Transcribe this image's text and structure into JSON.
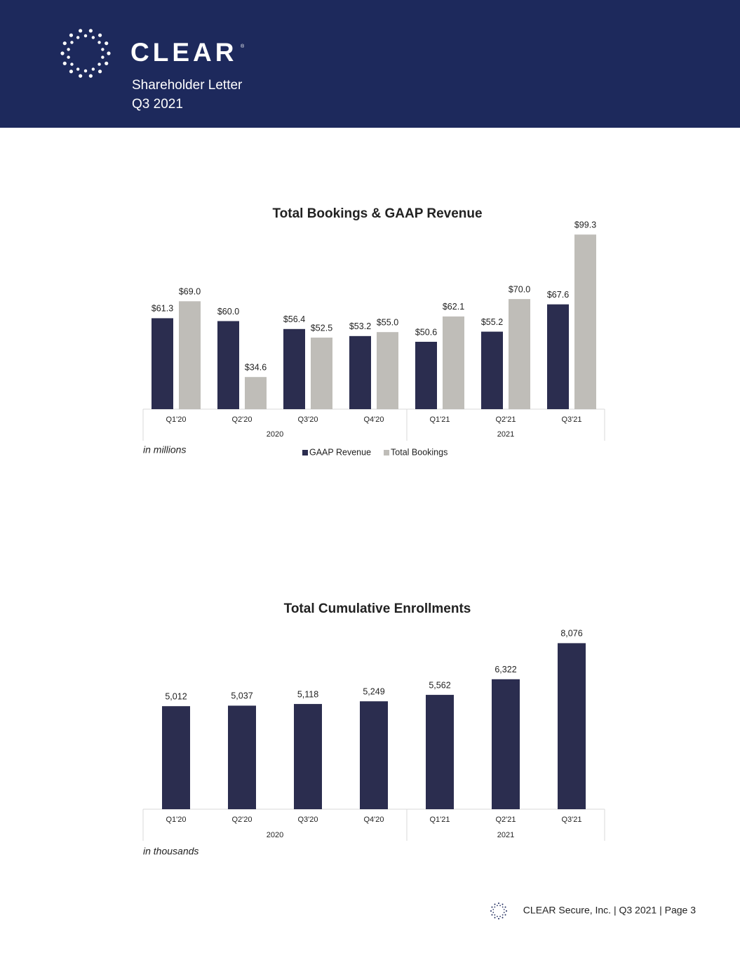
{
  "header": {
    "brand": "CLEAR",
    "brand_mark": "®",
    "subtitle": "Shareholder Letter",
    "period": "Q3 2021"
  },
  "chart_data": [
    {
      "type": "bar",
      "title": "Total Bookings & GAAP Revenue",
      "category_groups": [
        {
          "name": "2020",
          "categories": [
            "Q1'20",
            "Q2'20",
            "Q3'20",
            "Q4'20"
          ]
        },
        {
          "name": "2021",
          "categories": [
            "Q1'21",
            "Q2'21",
            "Q3'21"
          ]
        }
      ],
      "series": [
        {
          "name": "GAAP Revenue",
          "color": "#2b2d4f",
          "values": [
            61.3,
            60.0,
            56.4,
            53.2,
            50.6,
            55.2,
            67.6
          ],
          "value_labels": [
            "$61.3",
            "$60.0",
            "$56.4",
            "$53.2",
            "$50.6",
            "$55.2",
            "$67.6"
          ]
        },
        {
          "name": "Total Bookings",
          "color": "#bfbdb8",
          "values": [
            69.0,
            34.6,
            52.5,
            55.0,
            62.1,
            70.0,
            99.3
          ],
          "value_labels": [
            "$69.0",
            "$34.6",
            "$52.5",
            "$55.0",
            "$62.1",
            "$70.0",
            "$99.3"
          ]
        }
      ],
      "ylim": [
        20,
        100
      ],
      "note": "in millions",
      "legend": "bottom"
    },
    {
      "type": "bar",
      "title": "Total Cumulative Enrollments",
      "category_groups": [
        {
          "name": "2020",
          "categories": [
            "Q1'20",
            "Q2'20",
            "Q3'20",
            "Q4'20"
          ]
        },
        {
          "name": "2021",
          "categories": [
            "Q1'21",
            "Q2'21",
            "Q3'21"
          ]
        }
      ],
      "color": "#2b2d4f",
      "values": [
        5012,
        5037,
        5118,
        5249,
        5562,
        6322,
        8076
      ],
      "value_labels": [
        "5,012",
        "5,037",
        "5,118",
        "5,249",
        "5,562",
        "6,322",
        "8,076"
      ],
      "ylim": [
        0,
        8500
      ],
      "note": "in thousands"
    }
  ],
  "footer": "CLEAR Secure, Inc. | Q3 2021 | Page 3"
}
